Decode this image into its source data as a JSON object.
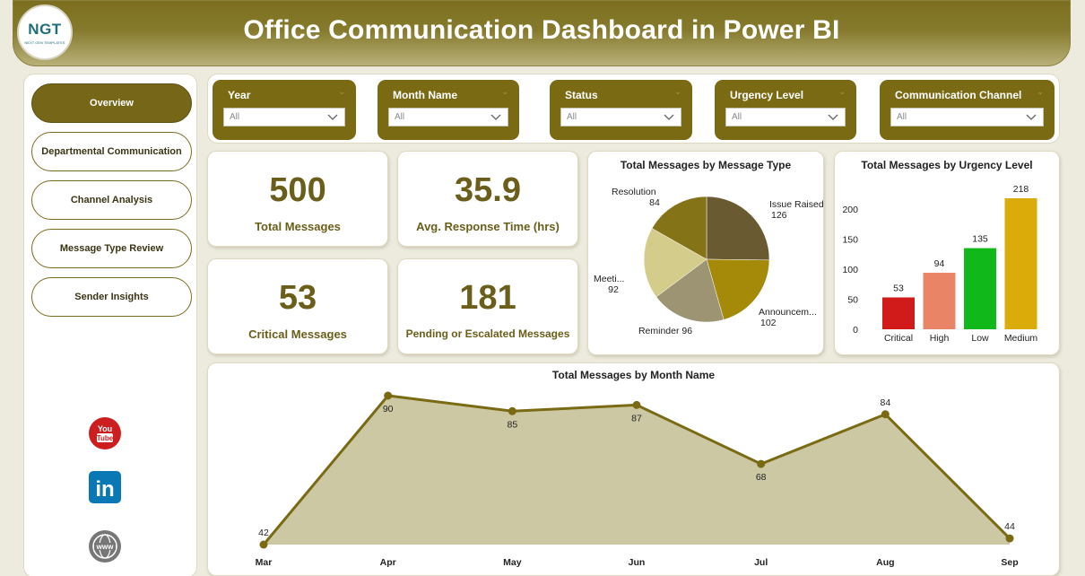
{
  "header": {
    "title": "Office Communication Dashboard in Power BI",
    "logo_text": "NGT",
    "logo_sub": "NEXT GEN TEMPLATES"
  },
  "sidebar": {
    "items": [
      {
        "label": "Overview",
        "active": true
      },
      {
        "label": "Departmental Communication",
        "active": false
      },
      {
        "label": "Channel Analysis",
        "active": false
      },
      {
        "label": "Message Type Review",
        "active": false
      },
      {
        "label": "Sender Insights",
        "active": false
      }
    ],
    "social": [
      {
        "icon": "youtube-icon",
        "text": "You Tube",
        "color": "#cc1e1e"
      },
      {
        "icon": "linkedin-icon",
        "text": "in",
        "color": "#0a78b5"
      },
      {
        "icon": "globe-icon",
        "text": "www",
        "color": "#777777"
      }
    ]
  },
  "filters": [
    {
      "label": "Year",
      "value": "All"
    },
    {
      "label": "Month Name",
      "value": "All"
    },
    {
      "label": "Status",
      "value": "All"
    },
    {
      "label": "Urgency Level",
      "value": "All"
    },
    {
      "label": "Communication Channel",
      "value": "All"
    }
  ],
  "kpis": [
    {
      "value": "500",
      "label": "Total Messages"
    },
    {
      "value": "35.9",
      "label": "Avg. Response Time (hrs)"
    },
    {
      "value": "53",
      "label": "Critical Messages"
    },
    {
      "value": "181",
      "label": "Pending or Escalated Messages"
    }
  ],
  "chart_data": [
    {
      "type": "pie",
      "title": "Total Messages by Message Type",
      "slices": [
        {
          "label": "Issue Raised",
          "value": 126,
          "color": "#6a5a32"
        },
        {
          "label": "Announcem...",
          "value": 102,
          "color": "#a58a0a"
        },
        {
          "label": "Reminder",
          "value": 96,
          "color": "#9c9472"
        },
        {
          "label": "Meeti...",
          "value": 92,
          "color": "#d3cc8a"
        },
        {
          "label": "Resolution",
          "value": 84,
          "color": "#857318"
        }
      ]
    },
    {
      "type": "bar",
      "title": "Total Messages by Urgency Level",
      "categories": [
        "Critical",
        "High",
        "Low",
        "Medium"
      ],
      "values": [
        53,
        94,
        135,
        218
      ],
      "colors": [
        "#d11b1b",
        "#ea8466",
        "#11b81a",
        "#dbab0a"
      ],
      "yticks": [
        "0",
        "50",
        "100",
        "150",
        "200"
      ],
      "ylim": [
        0,
        218
      ]
    },
    {
      "type": "area",
      "title": "Total Messages by Month Name",
      "categories": [
        "Mar",
        "Apr",
        "May",
        "Jun",
        "Jul",
        "Aug",
        "Sep"
      ],
      "values": [
        42,
        90,
        85,
        87,
        68,
        84,
        44
      ],
      "line_color": "#7a6a14",
      "fill_color": "#ccc8a4"
    }
  ]
}
